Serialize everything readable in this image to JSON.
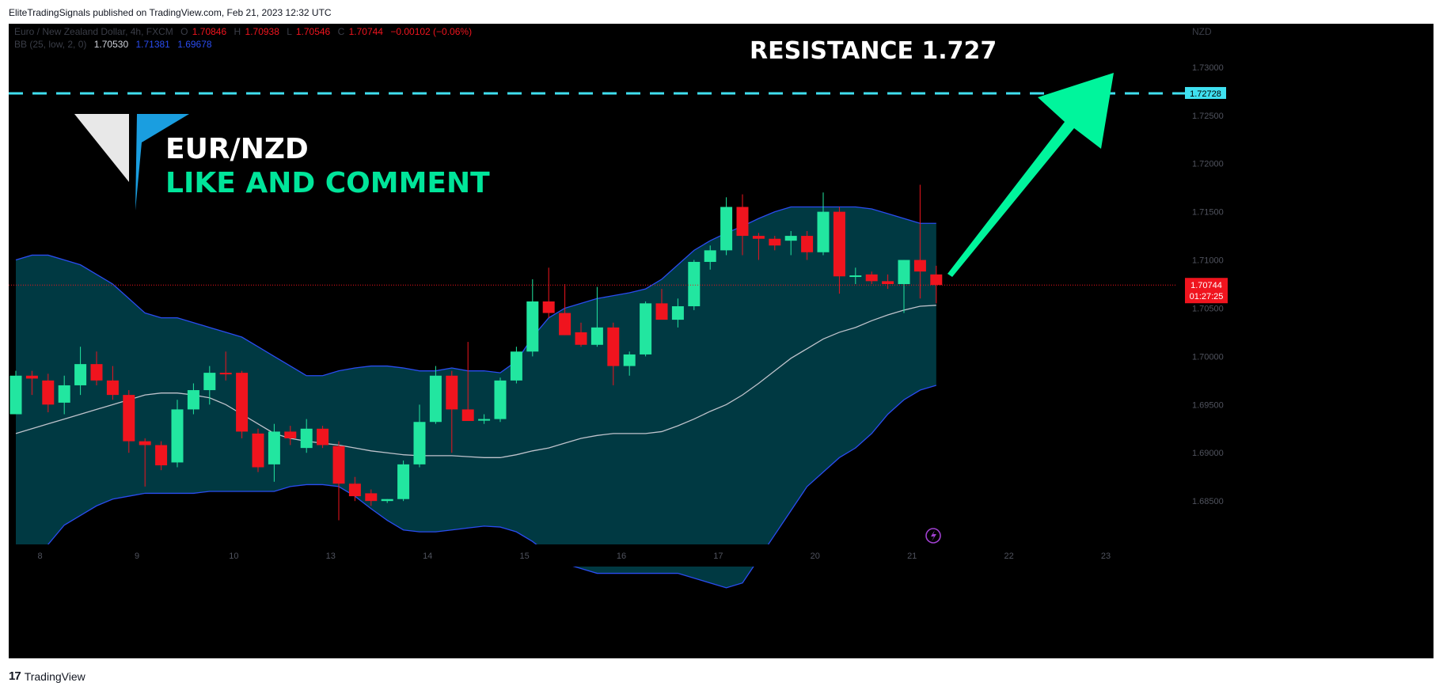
{
  "publisher_line": "EliteTradingSignals published on TradingView.com, Feb 21, 2023 12:32 UTC",
  "footer": {
    "logo_mark": "17",
    "logo_text": "TradingView"
  },
  "legend": {
    "symbol": "Euro / New Zealand Dollar, 4h, FXCM",
    "o_label": "O",
    "o": "1.70846",
    "h_label": "H",
    "h": "1.70938",
    "l_label": "L",
    "l": "1.70546",
    "c_label": "C",
    "c": "1.70744",
    "change": "−0.00102 (−0.06%)",
    "bb_label": "BB (25, low, 2, 0)",
    "bb_basis": "1.70530",
    "bb_upper": "1.71381",
    "bb_lower": "1.69678"
  },
  "currency": "NZD",
  "annotations": {
    "resistance_text": "RESISTANCE  1.727",
    "pair": "EUR/NZD",
    "cta": "LIKE AND COMMENT",
    "resistance_value": 1.72728
  },
  "badges": {
    "resistance_badge": "1.72728",
    "price_badge": "1.70744",
    "countdown": "01:27:25"
  },
  "colors": {
    "up": "#22e6a0",
    "down": "#f0141e",
    "band_fill": "#003c46",
    "band_line": "#2a4cf0",
    "basis": "#bfc3cc",
    "resistance": "#3fe0f0",
    "arrow": "#00f59c",
    "accent_text": "#00e59a"
  },
  "chart_data": {
    "type": "candlestick",
    "y_axis": {
      "min": 1.6805,
      "max": 1.7345,
      "ticks": [
        1.685,
        1.69,
        1.695,
        1.7,
        1.705,
        1.71,
        1.715,
        1.72,
        1.725,
        1.73
      ],
      "tick_labels": [
        "1.68500",
        "1.69000",
        "1.69500",
        "1.70000",
        "1.70500",
        "1.71000",
        "1.71500",
        "1.72000",
        "1.72500",
        "1.73000"
      ]
    },
    "x_axis": {
      "labels": [
        "8",
        "9",
        "10",
        "13",
        "14",
        "15",
        "16",
        "17",
        "20",
        "21",
        "22",
        "23"
      ],
      "label_candle_index": [
        1.5,
        7.5,
        13.5,
        19.5,
        25.5,
        31.5,
        37.5,
        43.5,
        49.5,
        55.5,
        61.5,
        67.5
      ]
    },
    "candles": [
      {
        "o": 1.694,
        "h": 1.6985,
        "l": 1.694,
        "c": 1.698
      },
      {
        "o": 1.698,
        "h": 1.6985,
        "l": 1.696,
        "c": 1.6977
      },
      {
        "o": 1.6975,
        "h": 1.6982,
        "l": 1.6942,
        "c": 1.695
      },
      {
        "o": 1.6952,
        "h": 1.698,
        "l": 1.694,
        "c": 1.697
      },
      {
        "o": 1.697,
        "h": 1.701,
        "l": 1.696,
        "c": 1.6992
      },
      {
        "o": 1.6992,
        "h": 1.7005,
        "l": 1.697,
        "c": 1.6975
      },
      {
        "o": 1.6975,
        "h": 1.699,
        "l": 1.6955,
        "c": 1.696
      },
      {
        "o": 1.696,
        "h": 1.6965,
        "l": 1.69,
        "c": 1.6912
      },
      {
        "o": 1.6912,
        "h": 1.6915,
        "l": 1.6865,
        "c": 1.6908
      },
      {
        "o": 1.6908,
        "h": 1.6912,
        "l": 1.6882,
        "c": 1.6887
      },
      {
        "o": 1.689,
        "h": 1.6955,
        "l": 1.6885,
        "c": 1.6945
      },
      {
        "o": 1.6945,
        "h": 1.6972,
        "l": 1.694,
        "c": 1.6965
      },
      {
        "o": 1.6965,
        "h": 1.699,
        "l": 1.695,
        "c": 1.6983
      },
      {
        "o": 1.6983,
        "h": 1.7005,
        "l": 1.6975,
        "c": 1.6982
      },
      {
        "o": 1.6983,
        "h": 1.6985,
        "l": 1.6915,
        "c": 1.6922
      },
      {
        "o": 1.692,
        "h": 1.6925,
        "l": 1.688,
        "c": 1.6885
      },
      {
        "o": 1.6888,
        "h": 1.693,
        "l": 1.687,
        "c": 1.6922
      },
      {
        "o": 1.6922,
        "h": 1.6928,
        "l": 1.6908,
        "c": 1.6915
      },
      {
        "o": 1.6905,
        "h": 1.6935,
        "l": 1.69,
        "c": 1.6925
      },
      {
        "o": 1.6925,
        "h": 1.6928,
        "l": 1.6905,
        "c": 1.6908
      },
      {
        "o": 1.6907,
        "h": 1.6912,
        "l": 1.683,
        "c": 1.6868
      },
      {
        "o": 1.6868,
        "h": 1.6875,
        "l": 1.685,
        "c": 1.6855
      },
      {
        "o": 1.6858,
        "h": 1.6862,
        "l": 1.6845,
        "c": 1.685
      },
      {
        "o": 1.685,
        "h": 1.6852,
        "l": 1.6848,
        "c": 1.6852
      },
      {
        "o": 1.6852,
        "h": 1.6892,
        "l": 1.685,
        "c": 1.6888
      },
      {
        "o": 1.6888,
        "h": 1.695,
        "l": 1.6885,
        "c": 1.6932
      },
      {
        "o": 1.6932,
        "h": 1.699,
        "l": 1.693,
        "c": 1.698
      },
      {
        "o": 1.698,
        "h": 1.6985,
        "l": 1.69,
        "c": 1.6945
      },
      {
        "o": 1.6945,
        "h": 1.7015,
        "l": 1.6935,
        "c": 1.6933
      },
      {
        "o": 1.6935,
        "h": 1.694,
        "l": 1.693,
        "c": 1.6935
      },
      {
        "o": 1.6935,
        "h": 1.6978,
        "l": 1.6932,
        "c": 1.6975
      },
      {
        "o": 1.6975,
        "h": 1.701,
        "l": 1.6972,
        "c": 1.7005
      },
      {
        "o": 1.7005,
        "h": 1.708,
        "l": 1.7,
        "c": 1.7057
      },
      {
        "o": 1.7057,
        "h": 1.7092,
        "l": 1.704,
        "c": 1.7045
      },
      {
        "o": 1.7045,
        "h": 1.7075,
        "l": 1.7022,
        "c": 1.7022
      },
      {
        "o": 1.7025,
        "h": 1.7035,
        "l": 1.701,
        "c": 1.7012
      },
      {
        "o": 1.7012,
        "h": 1.7072,
        "l": 1.701,
        "c": 1.703
      },
      {
        "o": 1.703,
        "h": 1.7035,
        "l": 1.697,
        "c": 1.699
      },
      {
        "o": 1.699,
        "h": 1.7005,
        "l": 1.698,
        "c": 1.7002
      },
      {
        "o": 1.7002,
        "h": 1.7057,
        "l": 1.7,
        "c": 1.7055
      },
      {
        "o": 1.7055,
        "h": 1.707,
        "l": 1.704,
        "c": 1.7038
      },
      {
        "o": 1.7038,
        "h": 1.706,
        "l": 1.703,
        "c": 1.7052
      },
      {
        "o": 1.7052,
        "h": 1.71,
        "l": 1.7048,
        "c": 1.7098
      },
      {
        "o": 1.7098,
        "h": 1.7115,
        "l": 1.709,
        "c": 1.711
      },
      {
        "o": 1.711,
        "h": 1.7165,
        "l": 1.7105,
        "c": 1.7155
      },
      {
        "o": 1.7155,
        "h": 1.7168,
        "l": 1.7105,
        "c": 1.7125
      },
      {
        "o": 1.7125,
        "h": 1.7128,
        "l": 1.71,
        "c": 1.7122
      },
      {
        "o": 1.7122,
        "h": 1.7125,
        "l": 1.711,
        "c": 1.7115
      },
      {
        "o": 1.712,
        "h": 1.713,
        "l": 1.7105,
        "c": 1.7125
      },
      {
        "o": 1.7125,
        "h": 1.713,
        "l": 1.71,
        "c": 1.7108
      },
      {
        "o": 1.7108,
        "h": 1.717,
        "l": 1.7105,
        "c": 1.715
      },
      {
        "o": 1.715,
        "h": 1.7155,
        "l": 1.7065,
        "c": 1.7083
      },
      {
        "o": 1.7083,
        "h": 1.7092,
        "l": 1.7075,
        "c": 1.7084
      },
      {
        "o": 1.7085,
        "h": 1.7088,
        "l": 1.7075,
        "c": 1.7078
      },
      {
        "o": 1.7078,
        "h": 1.7085,
        "l": 1.707,
        "c": 1.7075
      },
      {
        "o": 1.7075,
        "h": 1.71,
        "l": 1.7045,
        "c": 1.71
      },
      {
        "o": 1.71,
        "h": 1.7178,
        "l": 1.706,
        "c": 1.7088
      },
      {
        "o": 1.7085,
        "h": 1.7094,
        "l": 1.7055,
        "c": 1.7074
      }
    ],
    "bb_upper": [
      1.71,
      1.7105,
      1.7105,
      1.71,
      1.7095,
      1.7085,
      1.7075,
      1.706,
      1.7045,
      1.704,
      1.704,
      1.7035,
      1.703,
      1.7025,
      1.702,
      1.701,
      1.7,
      1.699,
      1.698,
      1.698,
      1.6985,
      1.6988,
      1.699,
      1.699,
      1.6988,
      1.6985,
      1.6985,
      1.6988,
      1.6985,
      1.6985,
      1.6983,
      1.6995,
      1.702,
      1.704,
      1.705,
      1.7055,
      1.706,
      1.7063,
      1.7066,
      1.707,
      1.708,
      1.7095,
      1.711,
      1.712,
      1.7128,
      1.7135,
      1.7143,
      1.715,
      1.7155,
      1.7155,
      1.7155,
      1.7155,
      1.7155,
      1.7153,
      1.7148,
      1.7143,
      1.7138,
      1.7138
    ],
    "bb_basis": [
      1.692,
      1.6925,
      1.693,
      1.6935,
      1.694,
      1.6945,
      1.695,
      1.6955,
      1.696,
      1.6962,
      1.6962,
      1.696,
      1.6957,
      1.695,
      1.694,
      1.693,
      1.692,
      1.6915,
      1.6912,
      1.691,
      1.6908,
      1.6905,
      1.6902,
      1.69,
      1.6898,
      1.6897,
      1.6897,
      1.6897,
      1.6896,
      1.6895,
      1.6895,
      1.6898,
      1.6902,
      1.6905,
      1.691,
      1.6915,
      1.6918,
      1.692,
      1.692,
      1.692,
      1.6922,
      1.6928,
      1.6935,
      1.6943,
      1.695,
      1.696,
      1.6972,
      1.6985,
      1.6998,
      1.7008,
      1.7018,
      1.7025,
      1.703,
      1.7037,
      1.7043,
      1.7048,
      1.7052,
      1.7053
    ],
    "bb_lower": [
      1.679,
      1.6795,
      1.6805,
      1.6825,
      1.6835,
      1.6845,
      1.6852,
      1.6855,
      1.6858,
      1.6858,
      1.6858,
      1.6858,
      1.686,
      1.686,
      1.686,
      1.686,
      1.686,
      1.6865,
      1.6867,
      1.6867,
      1.6865,
      1.6855,
      1.6842,
      1.683,
      1.682,
      1.6818,
      1.6818,
      1.682,
      1.6822,
      1.6824,
      1.6823,
      1.6818,
      1.6808,
      1.6795,
      1.6785,
      1.678,
      1.6775,
      1.6775,
      1.6775,
      1.6775,
      1.6775,
      1.6775,
      1.677,
      1.6765,
      1.676,
      1.6765,
      1.679,
      1.6815,
      1.684,
      1.6865,
      1.688,
      1.6895,
      1.6905,
      1.692,
      1.694,
      1.6955,
      1.6965,
      1.697
    ]
  }
}
